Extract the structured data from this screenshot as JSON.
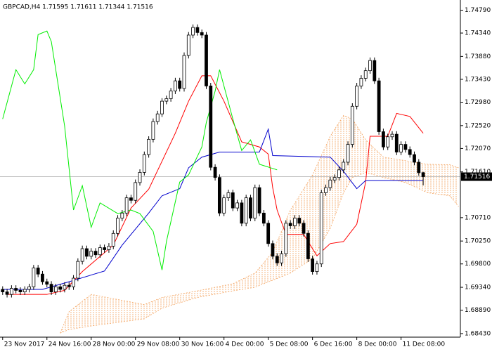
{
  "chart_data": {
    "type": "candlestick",
    "title": "GBPCAD,H4  1.71595 1.71611 1.71344 1.71516",
    "up_color": "#ffffff",
    "down_color": "#000000",
    "wick_color": "#000000",
    "open": [
      1.693,
      1.6925,
      1.692,
      1.6932,
      1.6928,
      1.6925,
      1.693,
      1.6935,
      1.6972,
      1.696,
      1.6945,
      1.694,
      1.6925,
      1.6935,
      1.693,
      1.6938,
      1.6935,
      1.6952,
      1.6985,
      1.701,
      1.6995,
      1.7005,
      1.6998,
      1.7012,
      1.7008,
      1.7015,
      1.704,
      1.707,
      1.708,
      1.711,
      1.7105,
      1.714,
      1.716,
      1.7195,
      1.7225,
      1.726,
      1.7275,
      1.73,
      1.7305,
      1.732,
      1.734,
      1.7325,
      1.739,
      1.743,
      1.7445,
      1.7435,
      1.743,
      1.733,
      1.717,
      1.715,
      1.708,
      1.711,
      1.712,
      1.709,
      1.71,
      1.706,
      1.711,
      1.707,
      1.713,
      1.708,
      1.706,
      1.702,
      1.6995,
      1.6982,
      1.7,
      1.706,
      1.7055,
      1.707,
      1.706,
      1.704,
      1.699,
      1.6965,
      1.698,
      1.712,
      1.713,
      1.7145,
      1.715,
      1.7165,
      1.718,
      1.7215,
      1.729,
      1.733,
      1.7345,
      1.736,
      1.738,
      1.734,
      1.724,
      1.721,
      1.723,
      1.7235,
      1.72,
      1.7215,
      1.7205,
      1.7195,
      1.718,
      1.71595
    ],
    "high": [
      1.6936,
      1.6931,
      1.6938,
      1.6938,
      1.6934,
      1.6936,
      1.6941,
      1.6978,
      1.6978,
      1.6966,
      1.6951,
      1.6946,
      1.6941,
      1.6941,
      1.6944,
      1.6944,
      1.6958,
      1.6991,
      1.7016,
      1.7016,
      1.7011,
      1.7011,
      1.7018,
      1.7018,
      1.7021,
      1.7046,
      1.7076,
      1.7086,
      1.7116,
      1.7116,
      1.7146,
      1.7166,
      1.7201,
      1.7231,
      1.7266,
      1.7281,
      1.7306,
      1.7311,
      1.7326,
      1.7346,
      1.7346,
      1.7396,
      1.7436,
      1.7451,
      1.7451,
      1.7441,
      1.7436,
      1.7336,
      1.7176,
      1.7156,
      1.7116,
      1.7126,
      1.7126,
      1.7106,
      1.7106,
      1.7116,
      1.7116,
      1.7136,
      1.7136,
      1.7086,
      1.7066,
      1.7026,
      1.7001,
      1.7006,
      1.7066,
      1.7066,
      1.7076,
      1.7076,
      1.7066,
      1.7046,
      1.6996,
      1.6986,
      1.7126,
      1.7136,
      1.7151,
      1.7156,
      1.7171,
      1.7186,
      1.7221,
      1.7296,
      1.7336,
      1.7351,
      1.7366,
      1.7386,
      1.7386,
      1.7346,
      1.7246,
      1.7236,
      1.7241,
      1.7241,
      1.7221,
      1.7221,
      1.7211,
      1.7201,
      1.7186,
      1.71611
    ],
    "low": [
      1.6919,
      1.6914,
      1.6914,
      1.6922,
      1.6919,
      1.6919,
      1.6924,
      1.6929,
      1.6954,
      1.6939,
      1.6934,
      1.6919,
      1.6919,
      1.6924,
      1.6924,
      1.6929,
      1.6929,
      1.6946,
      1.6979,
      1.6989,
      1.6989,
      1.6992,
      1.6992,
      1.7002,
      1.7002,
      1.7009,
      1.7034,
      1.7064,
      1.7074,
      1.7099,
      1.7099,
      1.7134,
      1.7154,
      1.7189,
      1.7219,
      1.7254,
      1.7269,
      1.7294,
      1.7299,
      1.7314,
      1.7319,
      1.7319,
      1.7384,
      1.7424,
      1.7429,
      1.7424,
      1.7324,
      1.7164,
      1.7144,
      1.7074,
      1.7074,
      1.7104,
      1.7084,
      1.7084,
      1.7054,
      1.7054,
      1.7064,
      1.7064,
      1.7074,
      1.7054,
      1.7014,
      1.6989,
      1.6976,
      1.6976,
      1.6994,
      1.7049,
      1.7049,
      1.7054,
      1.7034,
      1.6984,
      1.6959,
      1.6959,
      1.6974,
      1.7114,
      1.7124,
      1.7139,
      1.7144,
      1.7159,
      1.7174,
      1.7209,
      1.7284,
      1.7324,
      1.7339,
      1.7354,
      1.7334,
      1.7234,
      1.7204,
      1.7204,
      1.7224,
      1.7194,
      1.7194,
      1.7199,
      1.7189,
      1.7174,
      1.71535,
      1.71344
    ],
    "close": [
      1.6925,
      1.692,
      1.6932,
      1.6928,
      1.6925,
      1.693,
      1.6935,
      1.6972,
      1.696,
      1.6945,
      1.694,
      1.6925,
      1.6935,
      1.693,
      1.6938,
      1.6935,
      1.6952,
      1.6985,
      1.701,
      1.6995,
      1.7005,
      1.6998,
      1.7012,
      1.7008,
      1.7015,
      1.704,
      1.707,
      1.708,
      1.711,
      1.7105,
      1.714,
      1.716,
      1.7195,
      1.7225,
      1.726,
      1.7275,
      1.73,
      1.7305,
      1.732,
      1.734,
      1.7325,
      1.739,
      1.743,
      1.7445,
      1.7435,
      1.743,
      1.733,
      1.717,
      1.715,
      1.708,
      1.711,
      1.712,
      1.709,
      1.71,
      1.706,
      1.711,
      1.707,
      1.713,
      1.708,
      1.706,
      1.702,
      1.6995,
      1.6982,
      1.7,
      1.706,
      1.7055,
      1.707,
      1.706,
      1.704,
      1.699,
      1.6965,
      1.698,
      1.712,
      1.713,
      1.7145,
      1.715,
      1.7165,
      1.718,
      1.7215,
      1.729,
      1.733,
      1.7345,
      1.736,
      1.738,
      1.734,
      1.724,
      1.721,
      1.723,
      1.7235,
      1.72,
      1.7215,
      1.7205,
      1.7195,
      1.718,
      1.71595,
      1.71516
    ],
    "lines": [
      {
        "color": "#ff0000",
        "x": [
          1,
          10,
          14,
          18,
          25,
          29,
          33,
          39,
          42,
          45,
          47,
          50,
          54,
          58,
          60,
          61,
          62,
          64,
          68,
          71,
          74,
          77,
          80,
          82,
          83,
          87,
          89,
          92,
          95
        ],
        "values": [
          1.692,
          1.692,
          1.6928,
          1.6965,
          1.7017,
          1.709,
          1.7127,
          1.7237,
          1.73,
          1.735,
          1.735,
          1.73,
          1.722,
          1.721,
          1.7196,
          1.713,
          1.7086,
          1.7038,
          1.7038,
          1.6996,
          1.702,
          1.7024,
          1.7058,
          1.7141,
          1.7231,
          1.7231,
          1.7276,
          1.727,
          1.7237
        ]
      },
      {
        "color": "#0000cd",
        "x": [
          0,
          9,
          15,
          23,
          27,
          33,
          36,
          40,
          42,
          45,
          49,
          58,
          60,
          61,
          74,
          77,
          80,
          82,
          95
        ],
        "values": [
          1.693,
          1.693,
          1.6945,
          1.6966,
          1.7017,
          1.708,
          1.7114,
          1.7128,
          1.7169,
          1.719,
          1.72,
          1.72,
          1.7245,
          1.7193,
          1.719,
          1.7162,
          1.7128,
          1.7144,
          1.7144
        ]
      },
      {
        "color": "#00ee00",
        "x": [
          0,
          3,
          5,
          7,
          8,
          10,
          11,
          14,
          16,
          18,
          20,
          22,
          26,
          29,
          31,
          34,
          36,
          37,
          40,
          42,
          45,
          46,
          48,
          49,
          52,
          54,
          56,
          58,
          62
        ],
        "values": [
          1.7265,
          1.7362,
          1.7334,
          1.7362,
          1.7431,
          1.7438,
          1.7417,
          1.7251,
          1.7086,
          1.7134,
          1.7052,
          1.71,
          1.7079,
          1.7086,
          1.7079,
          1.7044,
          1.6968,
          1.7024,
          1.7141,
          1.7155,
          1.721,
          1.7258,
          1.732,
          1.7362,
          1.7265,
          1.7203,
          1.7224,
          1.7176,
          1.7165
        ]
      }
    ],
    "cloud": {
      "color": "#f4a460",
      "x": [
        13,
        15,
        20,
        32,
        36,
        44,
        52,
        57,
        61,
        65,
        70,
        74,
        77,
        79,
        82,
        86,
        91,
        96,
        101,
        103
      ],
      "span_a": [
        1.6844,
        1.6886,
        1.692,
        1.69,
        1.6914,
        1.6927,
        1.6941,
        1.6962,
        1.7003,
        1.7086,
        1.7155,
        1.7231,
        1.7272,
        1.7265,
        1.7224,
        1.719,
        1.7183,
        1.7176,
        1.7175,
        1.7169
      ],
      "span_b": [
        1.6844,
        1.6851,
        1.6858,
        1.6872,
        1.6893,
        1.6914,
        1.6927,
        1.6934,
        1.6948,
        1.6962,
        1.699,
        1.705,
        1.712,
        1.715,
        1.716,
        1.715,
        1.714,
        1.712,
        1.7114,
        1.7093
      ]
    },
    "xlim": [
      -0.6,
      103.4
    ],
    "xticks": [
      {
        "value": 0,
        "label": "23 Nov 2017"
      },
      {
        "value": 10,
        "label": "24 Nov 16:00"
      },
      {
        "value": 20,
        "label": "28 Nov 00:00"
      },
      {
        "value": 30,
        "label": "29 Nov 08:00"
      },
      {
        "value": 40,
        "label": "30 Nov 16:00"
      },
      {
        "value": 50,
        "label": "4 Dec 00:00"
      },
      {
        "value": 60,
        "label": "5 Dec 08:00"
      },
      {
        "value": 70,
        "label": "6 Dec 16:00"
      },
      {
        "value": 80,
        "label": "8 Dec 00:00"
      },
      {
        "value": 90,
        "label": "11 Dec 08:00"
      }
    ],
    "ylim": [
      1.6836,
      1.7499
    ],
    "yticks": [
      {
        "value": 1.6843,
        "label": "1.68430"
      },
      {
        "value": 1.6889,
        "label": "1.68890"
      },
      {
        "value": 1.6934,
        "label": "1.69340"
      },
      {
        "value": 1.698,
        "label": "1.69800"
      },
      {
        "value": 1.7025,
        "label": "1.70250"
      },
      {
        "value": 1.7071,
        "label": "1.70710"
      },
      {
        "value": 1.7161,
        "label": "1.71610"
      },
      {
        "value": 1.7207,
        "label": "1.72070"
      },
      {
        "value": 1.7252,
        "label": "1.72520"
      },
      {
        "value": 1.7298,
        "label": "1.72980"
      },
      {
        "value": 1.7343,
        "label": "1.73430"
      },
      {
        "value": 1.7388,
        "label": "1.73880"
      },
      {
        "value": 1.7434,
        "label": "1.74340"
      },
      {
        "value": 1.7479,
        "label": "1.74790"
      }
    ],
    "grid": false
  }
}
